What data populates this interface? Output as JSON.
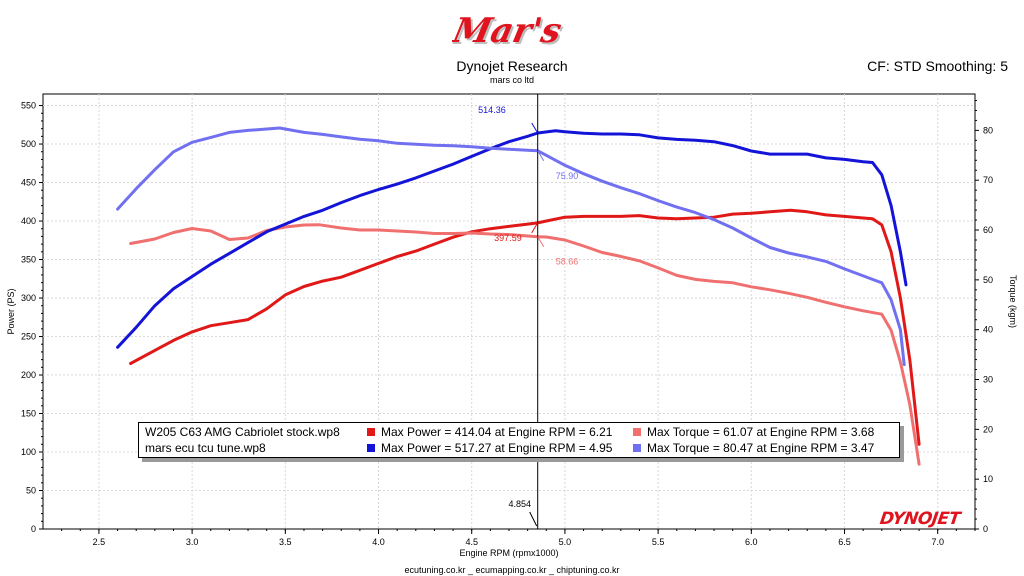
{
  "header": {
    "logo_text": "Mar's",
    "title": "Dynojet Research",
    "subtitle": "mars co ltd",
    "settings": "CF: STD Smoothing: 5"
  },
  "footer": {
    "text": "ecutuning.co.kr _ ecumapping.co.kr _ chiptuning.co.kr"
  },
  "brand": {
    "text": "DYNOJET"
  },
  "colors": {
    "stock_power": "#e01818",
    "stock_torque": "#f07070",
    "tune_power": "#1414d8",
    "tune_torque": "#7070f0",
    "cursor": "#000000"
  },
  "cursor": {
    "rpm_label": "4.854"
  },
  "chart_data": {
    "type": "line",
    "xlabel": "Engine RPM (rpmx1000)",
    "ylabel": "Power (PS)",
    "y2label": "Torque (kgm)",
    "xlim": [
      2.2,
      7.2
    ],
    "ylim": [
      0,
      565
    ],
    "y2lim": [
      0,
      87.3
    ],
    "xticks": [
      "2.5",
      "3.0",
      "3.5",
      "4.0",
      "4.5",
      "5.0",
      "5.5",
      "6.0",
      "6.5",
      "7.0"
    ],
    "yticks": [
      "0",
      "50",
      "100",
      "150",
      "200",
      "250",
      "300",
      "350",
      "400",
      "450",
      "500",
      "550"
    ],
    "y2ticks": [
      "0",
      "10",
      "20",
      "30",
      "40",
      "50",
      "60",
      "70",
      "80"
    ],
    "grid": true,
    "series": [
      {
        "name": "W205 C63 AMG Cabriolet stock.wp8",
        "quantity": "power",
        "axis": "left",
        "color": "#e01818",
        "x": [
          2.67,
          2.8,
          2.9,
          3.0,
          3.1,
          3.2,
          3.3,
          3.4,
          3.5,
          3.6,
          3.7,
          3.8,
          3.9,
          4.0,
          4.1,
          4.2,
          4.3,
          4.4,
          4.5,
          4.6,
          4.7,
          4.8,
          4.854,
          4.9,
          5.0,
          5.1,
          5.2,
          5.3,
          5.4,
          5.5,
          5.6,
          5.7,
          5.8,
          5.9,
          6.0,
          6.1,
          6.21,
          6.3,
          6.4,
          6.5,
          6.6,
          6.65,
          6.7,
          6.75,
          6.8,
          6.85,
          6.9
        ],
        "y": [
          215,
          232,
          245,
          256,
          264,
          268,
          272,
          286,
          304,
          315,
          322,
          327,
          336,
          345,
          354,
          361,
          370,
          379,
          386,
          390,
          393,
          396,
          397.59,
          400,
          405,
          406,
          406,
          406,
          407,
          404,
          403,
          404,
          405,
          409,
          410,
          412,
          414.04,
          412,
          408,
          406,
          404,
          403,
          395,
          360,
          300,
          220,
          110
        ]
      },
      {
        "name": "W205 C63 AMG Cabriolet stock.wp8",
        "quantity": "torque",
        "axis": "right",
        "color": "#f07070",
        "x": [
          2.67,
          2.8,
          2.9,
          3.0,
          3.1,
          3.2,
          3.3,
          3.4,
          3.5,
          3.6,
          3.68,
          3.8,
          3.9,
          4.0,
          4.1,
          4.2,
          4.3,
          4.4,
          4.5,
          4.6,
          4.7,
          4.8,
          4.854,
          4.9,
          5.0,
          5.1,
          5.2,
          5.3,
          5.4,
          5.5,
          5.6,
          5.7,
          5.8,
          5.9,
          6.0,
          6.1,
          6.2,
          6.3,
          6.4,
          6.5,
          6.6,
          6.7,
          6.75,
          6.8,
          6.85,
          6.9
        ],
        "y": [
          57.3,
          58.2,
          59.5,
          60.3,
          59.8,
          58.1,
          58.4,
          59.9,
          60.6,
          61.0,
          61.07,
          60.4,
          60.0,
          60.0,
          59.8,
          59.6,
          59.3,
          59.3,
          59.4,
          59.2,
          59.1,
          58.8,
          58.66,
          58.6,
          58.0,
          56.8,
          55.5,
          54.7,
          53.8,
          52.4,
          50.9,
          50.1,
          49.7,
          49.4,
          48.6,
          48.0,
          47.3,
          46.5,
          45.5,
          44.6,
          43.8,
          43.1,
          39.9,
          33.5,
          25.0,
          13.0
        ]
      },
      {
        "name": "mars ecu tcu tune.wp8",
        "quantity": "power",
        "axis": "left",
        "color": "#1414d8",
        "x": [
          2.6,
          2.7,
          2.8,
          2.9,
          3.0,
          3.1,
          3.2,
          3.3,
          3.4,
          3.5,
          3.6,
          3.7,
          3.8,
          3.9,
          4.0,
          4.1,
          4.2,
          4.3,
          4.4,
          4.5,
          4.6,
          4.7,
          4.8,
          4.854,
          4.95,
          5.0,
          5.1,
          5.2,
          5.3,
          5.4,
          5.5,
          5.6,
          5.7,
          5.8,
          5.9,
          6.0,
          6.1,
          6.2,
          6.3,
          6.4,
          6.5,
          6.6,
          6.65,
          6.7,
          6.75,
          6.8,
          6.83
        ],
        "y": [
          236,
          262,
          290,
          312,
          328,
          344,
          358,
          372,
          386,
          396,
          406,
          414,
          424,
          433,
          441,
          448,
          456,
          465,
          474,
          484,
          494,
          503,
          510,
          514.36,
          517.27,
          516,
          514,
          513,
          513,
          512,
          508,
          506,
          505,
          503,
          498,
          491,
          487,
          487,
          487,
          482,
          480,
          477,
          476,
          460,
          420,
          360,
          317
        ]
      },
      {
        "name": "mars ecu tcu tune.wp8",
        "quantity": "torque",
        "axis": "right",
        "color": "#7070f0",
        "x": [
          2.6,
          2.7,
          2.8,
          2.9,
          3.0,
          3.1,
          3.2,
          3.3,
          3.47,
          3.6,
          3.7,
          3.8,
          3.9,
          4.0,
          4.1,
          4.2,
          4.3,
          4.4,
          4.5,
          4.6,
          4.7,
          4.8,
          4.854,
          4.9,
          5.0,
          5.1,
          5.2,
          5.3,
          5.4,
          5.5,
          5.6,
          5.7,
          5.8,
          5.9,
          6.0,
          6.1,
          6.2,
          6.3,
          6.4,
          6.5,
          6.6,
          6.65,
          6.7,
          6.75,
          6.8,
          6.82
        ],
        "y": [
          64.2,
          68.3,
          72.1,
          75.7,
          77.6,
          78.6,
          79.6,
          80.0,
          80.47,
          79.6,
          79.2,
          78.7,
          78.2,
          77.9,
          77.4,
          77.2,
          77.0,
          76.9,
          76.7,
          76.4,
          76.2,
          76.0,
          75.9,
          75.0,
          73.0,
          71.3,
          69.8,
          68.5,
          67.3,
          65.9,
          64.6,
          63.5,
          62.1,
          60.4,
          58.4,
          56.5,
          55.4,
          54.6,
          53.7,
          52.2,
          50.8,
          50.1,
          49.4,
          46.0,
          40.0,
          33.0
        ]
      }
    ],
    "annotations": [
      {
        "text": "514.36",
        "x": 4.854,
        "y": 514.36,
        "axis": "left",
        "color": "#1414d8"
      },
      {
        "text": "75.90",
        "x": 4.854,
        "y": 75.9,
        "axis": "right",
        "color": "#7070f0"
      },
      {
        "text": "397.59",
        "x": 4.854,
        "y": 397.59,
        "axis": "left",
        "color": "#e01818"
      },
      {
        "text": "58.66",
        "x": 4.854,
        "y": 58.66,
        "axis": "right",
        "color": "#f07070"
      }
    ],
    "legend": {
      "placement": "bottom-center",
      "rows": [
        {
          "file": "W205 C63 AMG Cabriolet stock.wp8",
          "power_text": "Max Power = 414.04 at Engine RPM = 6.21",
          "power_color": "#e01818",
          "torque_text": "Max Torque = 61.07 at Engine RPM = 3.68",
          "torque_color": "#f07070"
        },
        {
          "file": "mars ecu tcu tune.wp8",
          "power_text": "Max Power = 517.27 at Engine RPM = 4.95",
          "power_color": "#1414d8",
          "torque_text": "Max Torque = 80.47 at Engine RPM = 3.47",
          "torque_color": "#7070f0"
        }
      ]
    }
  }
}
